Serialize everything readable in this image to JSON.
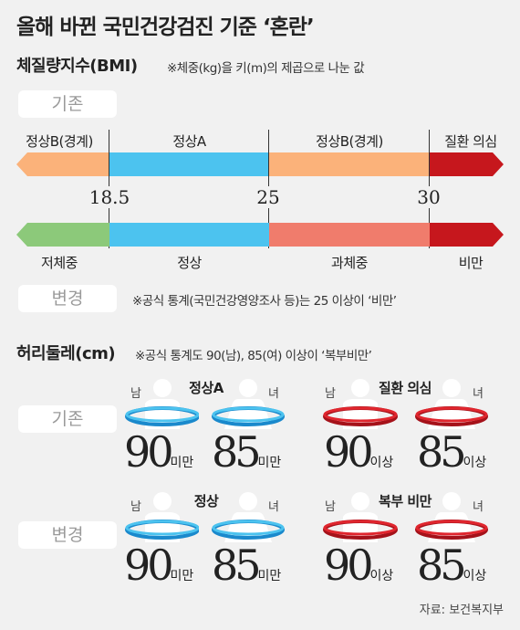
{
  "title": "올해 바뀐 국민건강검진 기준 ‘혼란’",
  "bmi": {
    "heading": "체질량지수(BMI)",
    "note": "※체중(kg)을 키(m)의 제곱으로 나눈 값",
    "old_label": "기존",
    "new_label": "변경",
    "old_segments": [
      "정상B(경계)",
      "정상A",
      "정상B(경계)",
      "질환 의심"
    ],
    "new_segments": [
      "저체중",
      "정상",
      "과체중",
      "비만"
    ],
    "ticks": [
      "18.5",
      "25",
      "30"
    ],
    "new_note": "※공식 통계(국민건강영양조사 등)는 25 이상이 ‘비만’",
    "colors": {
      "orange": "#fbb27a",
      "blue": "#4cc3ef",
      "darkred": "#c6171d",
      "green": "#8cc97a",
      "salmon": "#f07c6c"
    }
  },
  "waist": {
    "heading": "허리둘레(cm)",
    "note": "※공식 통계도 90(남), 85(여) 이상이 ‘복부비만’",
    "male": "남",
    "female": "녀",
    "old_label": "기존",
    "new_label": "변경",
    "rows": [
      {
        "left": {
          "category": "정상A",
          "male_value": "90",
          "female_value": "85",
          "suffix": "미만"
        },
        "right": {
          "category": "질환 의심",
          "male_value": "90",
          "female_value": "85",
          "suffix": "이상"
        }
      },
      {
        "left": {
          "category": "정상",
          "male_value": "90",
          "female_value": "85",
          "suffix": "미만"
        },
        "right": {
          "category": "복부 비만",
          "male_value": "90",
          "female_value": "85",
          "suffix": "이상"
        }
      }
    ]
  },
  "source": "자료: 보건복지부"
}
